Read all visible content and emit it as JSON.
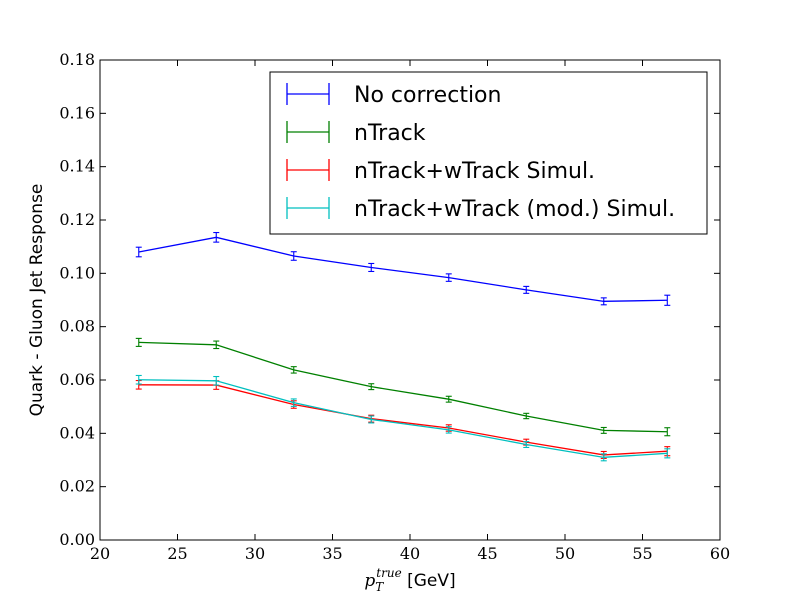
{
  "chart_data": {
    "type": "line",
    "title": "",
    "xlabel_main": "p",
    "xlabel_sub": "T",
    "xlabel_sup": "true",
    "xlabel_unit": " [GeV]",
    "ylabel": "Quark - Gluon Jet Response",
    "xlim": [
      20,
      60
    ],
    "ylim": [
      0,
      0.18
    ],
    "xticks": [
      20,
      25,
      30,
      35,
      40,
      45,
      50,
      55,
      60
    ],
    "xtick_labels": [
      "20",
      "25",
      "30",
      "35",
      "40",
      "45",
      "50",
      "55",
      "60"
    ],
    "yticks": [
      0,
      0.02,
      0.04,
      0.06,
      0.08,
      0.1,
      0.12,
      0.14,
      0.16,
      0.18
    ],
    "ytick_labels": [
      "0.00",
      "0.02",
      "0.04",
      "0.06",
      "0.08",
      "0.10",
      "0.12",
      "0.14",
      "0.16",
      "0.18"
    ],
    "grid": false,
    "legend_position": "top-right",
    "x": [
      22.5,
      27.5,
      32.5,
      37.5,
      42.5,
      47.5,
      52.5,
      56.6
    ],
    "series": [
      {
        "name": "No correction",
        "color": "#0000ff",
        "values": [
          0.108,
          0.1135,
          0.1065,
          0.1022,
          0.0984,
          0.0938,
          0.0895,
          0.0899
        ],
        "errors": [
          0.0018,
          0.0018,
          0.0016,
          0.0015,
          0.0014,
          0.0013,
          0.0013,
          0.0019
        ]
      },
      {
        "name": "nTrack",
        "color": "#008000",
        "values": [
          0.0741,
          0.0732,
          0.0638,
          0.0575,
          0.0528,
          0.0465,
          0.0411,
          0.0406
        ],
        "errors": [
          0.0015,
          0.0014,
          0.0012,
          0.0011,
          0.0011,
          0.001,
          0.0011,
          0.0015
        ]
      },
      {
        "name": "nTrack+wTrack Simul.",
        "color": "#ff0000",
        "values": [
          0.0582,
          0.0581,
          0.0508,
          0.0455,
          0.042,
          0.0367,
          0.0319,
          0.0333
        ],
        "errors": [
          0.0016,
          0.0016,
          0.0014,
          0.0013,
          0.0012,
          0.0011,
          0.0013,
          0.0017
        ]
      },
      {
        "name": "nTrack+wTrack (mod.) Simul.",
        "color": "#00bfbf",
        "values": [
          0.0601,
          0.0597,
          0.0515,
          0.0452,
          0.0413,
          0.0358,
          0.031,
          0.0325
        ],
        "errors": [
          0.0016,
          0.0016,
          0.0014,
          0.0013,
          0.0012,
          0.0011,
          0.0013,
          0.0017
        ]
      }
    ]
  }
}
